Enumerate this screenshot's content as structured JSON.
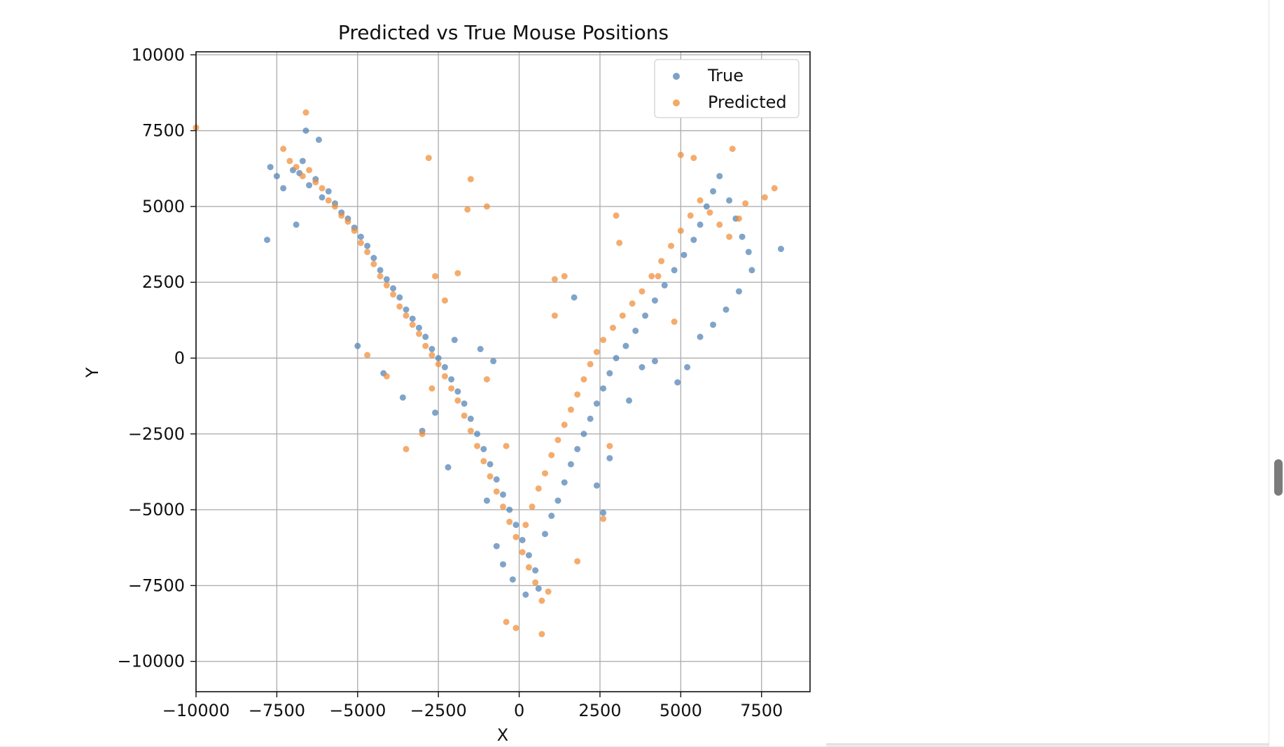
{
  "chart_data": {
    "type": "scatter",
    "title": "Predicted vs True Mouse Positions",
    "xlabel": "X",
    "ylabel": "Y",
    "xlim": [
      -10000,
      9000
    ],
    "ylim": [
      -11000,
      10100
    ],
    "xticks": [
      -10000,
      -7500,
      -5000,
      -2500,
      0,
      2500,
      5000,
      7500
    ],
    "xtick_labels": [
      "−10000",
      "−7500",
      "−5000",
      "−2500",
      "0",
      "2500",
      "5000",
      "7500"
    ],
    "yticks": [
      -10000,
      -7500,
      -5000,
      -2500,
      0,
      2500,
      5000,
      7500,
      10000
    ],
    "ytick_labels": [
      "−10000",
      "−7500",
      "−5000",
      "−2500",
      "0",
      "2500",
      "5000",
      "7500",
      "10000"
    ],
    "grid": true,
    "legend": {
      "position": "top-right",
      "entries": [
        {
          "label": "True",
          "color": "#4f81b4"
        },
        {
          "label": "Predicted",
          "color": "#f08c36"
        }
      ]
    },
    "series": [
      {
        "name": "True",
        "color": "#4f81b4",
        "points": [
          [
            -7700,
            6300
          ],
          [
            -7500,
            6000
          ],
          [
            -7300,
            5600
          ],
          [
            -7000,
            6200
          ],
          [
            -6800,
            6100
          ],
          [
            -6700,
            6500
          ],
          [
            -6500,
            5700
          ],
          [
            -6300,
            5900
          ],
          [
            -6100,
            5300
          ],
          [
            -5900,
            5500
          ],
          [
            -5700,
            5100
          ],
          [
            -5500,
            4800
          ],
          [
            -5300,
            4600
          ],
          [
            -5100,
            4300
          ],
          [
            -4900,
            4000
          ],
          [
            -4700,
            3700
          ],
          [
            -4500,
            3300
          ],
          [
            -4300,
            2900
          ],
          [
            -4100,
            2600
          ],
          [
            -3900,
            2300
          ],
          [
            -3700,
            2000
          ],
          [
            -3500,
            1600
          ],
          [
            -3300,
            1300
          ],
          [
            -3100,
            1000
          ],
          [
            -2900,
            700
          ],
          [
            -2700,
            300
          ],
          [
            -2500,
            0
          ],
          [
            -2300,
            -300
          ],
          [
            -2100,
            -700
          ],
          [
            -1900,
            -1100
          ],
          [
            -1700,
            -1500
          ],
          [
            -1500,
            -2000
          ],
          [
            -1300,
            -2500
          ],
          [
            -1100,
            -3000
          ],
          [
            -900,
            -3500
          ],
          [
            -700,
            -4000
          ],
          [
            -500,
            -4500
          ],
          [
            -300,
            -5000
          ],
          [
            -100,
            -5500
          ],
          [
            100,
            -6000
          ],
          [
            300,
            -6500
          ],
          [
            500,
            -7000
          ],
          [
            600,
            -7600
          ],
          [
            200,
            -7800
          ],
          [
            -200,
            -7300
          ],
          [
            -500,
            -6800
          ],
          [
            -700,
            -6200
          ],
          [
            800,
            -5800
          ],
          [
            1000,
            -5200
          ],
          [
            1200,
            -4700
          ],
          [
            1400,
            -4100
          ],
          [
            1600,
            -3500
          ],
          [
            1800,
            -3000
          ],
          [
            2000,
            -2500
          ],
          [
            2200,
            -2000
          ],
          [
            2400,
            -1500
          ],
          [
            2600,
            -1000
          ],
          [
            2800,
            -500
          ],
          [
            3000,
            0
          ],
          [
            3300,
            400
          ],
          [
            3600,
            900
          ],
          [
            3900,
            1400
          ],
          [
            4200,
            1900
          ],
          [
            4500,
            2400
          ],
          [
            4800,
            2900
          ],
          [
            5100,
            3400
          ],
          [
            5400,
            3900
          ],
          [
            5600,
            4400
          ],
          [
            5800,
            5000
          ],
          [
            6000,
            5500
          ],
          [
            6200,
            6000
          ],
          [
            6500,
            5200
          ],
          [
            6700,
            4600
          ],
          [
            6900,
            4000
          ],
          [
            7100,
            3500
          ],
          [
            7200,
            2900
          ],
          [
            6800,
            2200
          ],
          [
            6400,
            1600
          ],
          [
            6000,
            1100
          ],
          [
            5600,
            700
          ],
          [
            8100,
            3600
          ],
          [
            -7800,
            3900
          ],
          [
            -6900,
            4400
          ],
          [
            -6600,
            7500
          ],
          [
            -6200,
            7200
          ],
          [
            -4200,
            -500
          ],
          [
            -5000,
            400
          ],
          [
            -3600,
            -1300
          ],
          [
            -2000,
            600
          ],
          [
            -1200,
            300
          ],
          [
            -800,
            -100
          ],
          [
            1700,
            2000
          ],
          [
            -2200,
            -3600
          ],
          [
            -1000,
            -4700
          ],
          [
            2400,
            -4200
          ],
          [
            2600,
            -5100
          ],
          [
            2800,
            -3300
          ],
          [
            -3000,
            -2400
          ],
          [
            -2600,
            -1800
          ],
          [
            4200,
            -100
          ],
          [
            4900,
            -800
          ],
          [
            5200,
            -300
          ],
          [
            3800,
            -300
          ],
          [
            3400,
            -1400
          ]
        ]
      },
      {
        "name": "Predicted",
        "color": "#f08c36",
        "points": [
          [
            -10000,
            7600
          ],
          [
            -6600,
            8100
          ],
          [
            -7300,
            6900
          ],
          [
            -7100,
            6500
          ],
          [
            -6900,
            6300
          ],
          [
            -6700,
            6000
          ],
          [
            -6500,
            6200
          ],
          [
            -6300,
            5800
          ],
          [
            -6100,
            5600
          ],
          [
            -5900,
            5200
          ],
          [
            -5700,
            5000
          ],
          [
            -5500,
            4700
          ],
          [
            -5300,
            4500
          ],
          [
            -5100,
            4200
          ],
          [
            -4900,
            3800
          ],
          [
            -4700,
            3500
          ],
          [
            -4500,
            3100
          ],
          [
            -4300,
            2700
          ],
          [
            -4100,
            2400
          ],
          [
            -3900,
            2100
          ],
          [
            -3700,
            1700
          ],
          [
            -3500,
            1400
          ],
          [
            -3300,
            1100
          ],
          [
            -3100,
            800
          ],
          [
            -2900,
            400
          ],
          [
            -2700,
            100
          ],
          [
            -2500,
            -200
          ],
          [
            -2300,
            -600
          ],
          [
            -2100,
            -1000
          ],
          [
            -1900,
            -1400
          ],
          [
            -1700,
            -1900
          ],
          [
            -1500,
            -2400
          ],
          [
            -1300,
            -2900
          ],
          [
            -1100,
            -3400
          ],
          [
            -900,
            -3900
          ],
          [
            -700,
            -4400
          ],
          [
            -500,
            -4900
          ],
          [
            -300,
            -5400
          ],
          [
            -100,
            -5900
          ],
          [
            100,
            -6400
          ],
          [
            300,
            -6900
          ],
          [
            500,
            -7400
          ],
          [
            700,
            -8000
          ],
          [
            -400,
            -8700
          ],
          [
            700,
            -9100
          ],
          [
            -100,
            -8900
          ],
          [
            900,
            -7700
          ],
          [
            200,
            -5500
          ],
          [
            400,
            -4900
          ],
          [
            600,
            -4300
          ],
          [
            800,
            -3800
          ],
          [
            1000,
            -3200
          ],
          [
            1200,
            -2700
          ],
          [
            1400,
            -2200
          ],
          [
            1600,
            -1700
          ],
          [
            1800,
            -1200
          ],
          [
            2000,
            -700
          ],
          [
            2200,
            -200
          ],
          [
            2400,
            200
          ],
          [
            2600,
            600
          ],
          [
            2900,
            1000
          ],
          [
            3200,
            1400
          ],
          [
            3500,
            1800
          ],
          [
            3800,
            2200
          ],
          [
            4100,
            2700
          ],
          [
            4400,
            3200
          ],
          [
            4700,
            3700
          ],
          [
            5000,
            4200
          ],
          [
            5300,
            4700
          ],
          [
            5600,
            5200
          ],
          [
            5900,
            4800
          ],
          [
            6200,
            4400
          ],
          [
            6500,
            4000
          ],
          [
            6800,
            4600
          ],
          [
            7000,
            5100
          ],
          [
            6600,
            6900
          ],
          [
            5000,
            6700
          ],
          [
            5400,
            6600
          ],
          [
            7900,
            5600
          ],
          [
            7600,
            5300
          ],
          [
            -2800,
            6600
          ],
          [
            -1500,
            5900
          ],
          [
            -1600,
            4900
          ],
          [
            -1000,
            5000
          ],
          [
            -2600,
            2700
          ],
          [
            -1900,
            2800
          ],
          [
            -2300,
            1900
          ],
          [
            1100,
            2600
          ],
          [
            1400,
            2700
          ],
          [
            1100,
            1400
          ],
          [
            -1000,
            -700
          ],
          [
            -400,
            -2900
          ],
          [
            -3000,
            -2500
          ],
          [
            -3500,
            -3000
          ],
          [
            -4100,
            -600
          ],
          [
            3000,
            4700
          ],
          [
            3100,
            3800
          ],
          [
            2800,
            -2900
          ],
          [
            2600,
            -5300
          ],
          [
            1800,
            -6700
          ],
          [
            -2700,
            -1000
          ],
          [
            -4700,
            100
          ],
          [
            4300,
            2700
          ],
          [
            4800,
            1200
          ]
        ]
      }
    ]
  }
}
